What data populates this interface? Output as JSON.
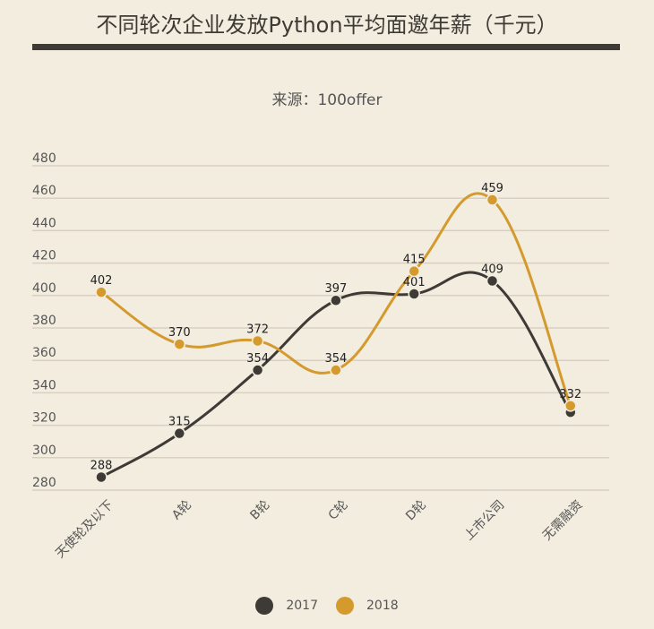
{
  "chart_data": {
    "type": "line",
    "title": "不同轮次企业发放Python平均面邀年薪（千元）",
    "subtitle": "来源：100offer",
    "xlabel": "",
    "ylabel": "",
    "categories": [
      "天使轮及以下",
      "A轮",
      "B轮",
      "C轮",
      "D轮",
      "上市公司",
      "无需融资"
    ],
    "series": [
      {
        "name": "2017",
        "color": "#3e3a35",
        "values": [
          288,
          315,
          354,
          397,
          401,
          409,
          328
        ]
      },
      {
        "name": "2018",
        "color": "#d49a2e",
        "values": [
          402,
          370,
          372,
          354,
          415,
          459,
          332
        ]
      }
    ],
    "yticks": [
      280,
      300,
      320,
      340,
      360,
      380,
      400,
      420,
      440,
      460,
      480
    ],
    "ylim": [
      280,
      480
    ],
    "grid": true,
    "legend_position": "bottom",
    "smooth": true
  },
  "legend": {
    "items": [
      {
        "label": "2017",
        "color": "#3e3a35"
      },
      {
        "label": "2018",
        "color": "#d49a2e"
      }
    ]
  }
}
